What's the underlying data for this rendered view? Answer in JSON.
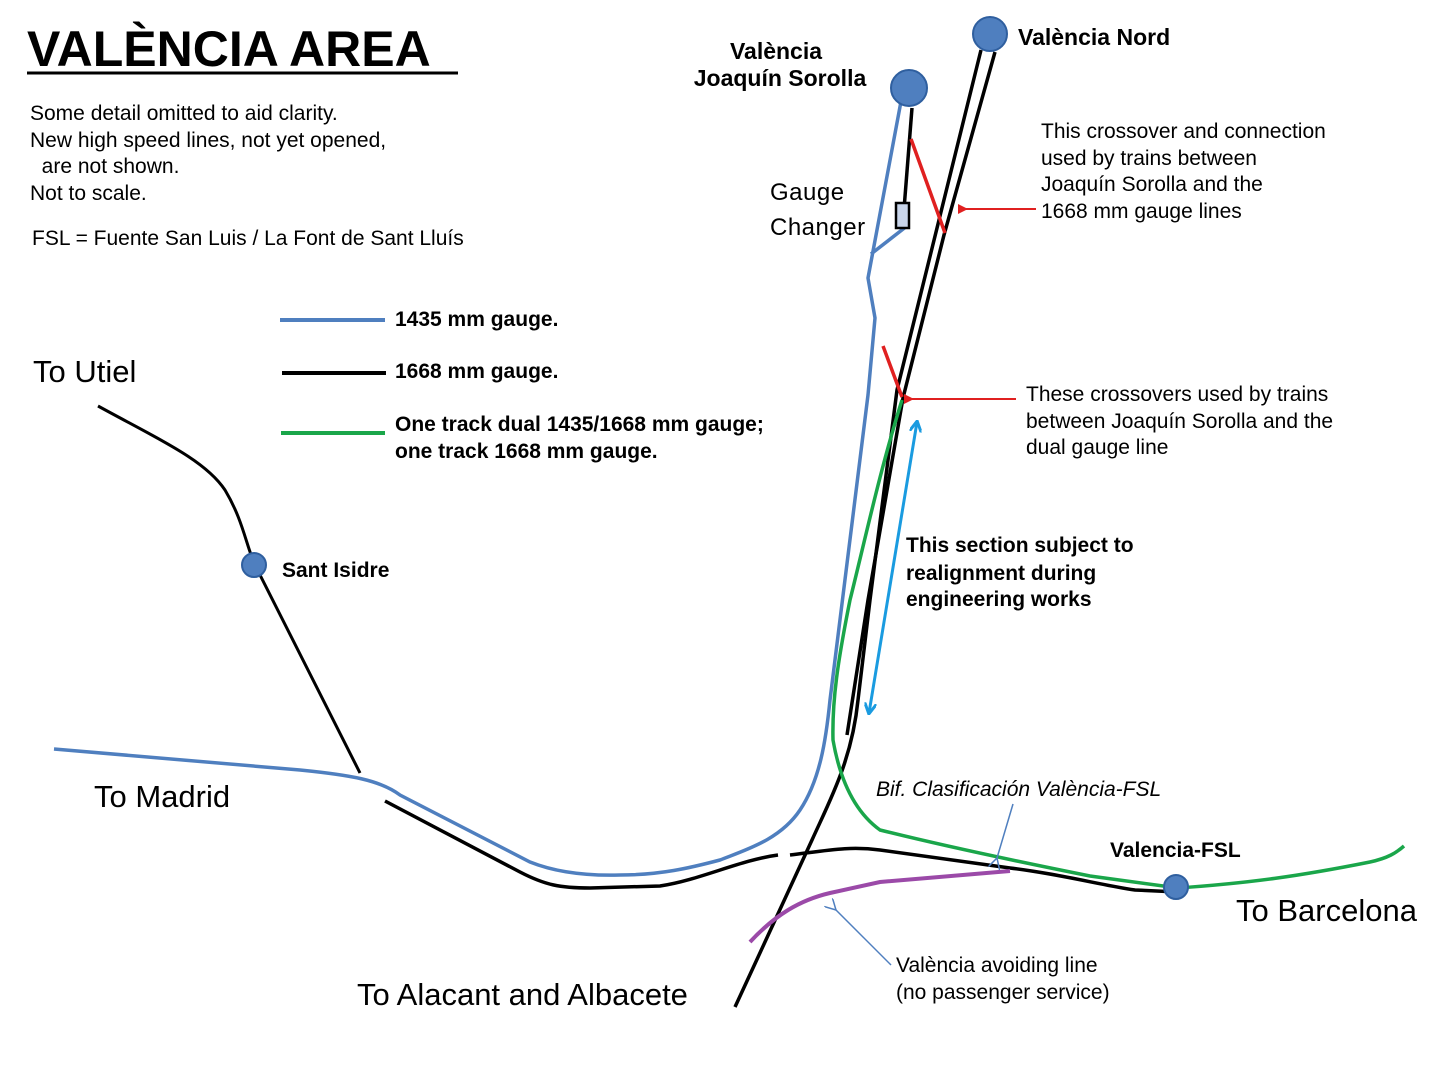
{
  "title": "VALÈNCIA AREA",
  "notes": [
    "Some detail omitted to aid clarity.",
    "New high speed lines, not yet opened,",
    "  are not shown.",
    "Not to scale."
  ],
  "abbreviation": "FSL = Fuente San Luis / La Font de Sant Lluís",
  "legend": [
    {
      "label": "1435 mm gauge.",
      "color": "#4f7fbf"
    },
    {
      "label": "1668 mm gauge.",
      "color": "#000000"
    },
    {
      "label_lines": [
        "One track dual 1435/1668 mm gauge;",
        "one track 1668 mm gauge."
      ],
      "color": "#1aa64a"
    }
  ],
  "colors": {
    "gauge_1435": "#4f7fbf",
    "gauge_1668": "#000000",
    "dual_gauge": "#1aa64a",
    "avoiding_line": "#9b4aa8",
    "crossover": "#e02020",
    "realignment_arrow": "#1a9be0",
    "pointer_arrow": "#4f7fbf",
    "station_fill": "#4f7fbf",
    "station_outline": "#2f5f9f"
  },
  "stations": {
    "sorolla": [
      "València",
      "Joaquín Sorolla"
    ],
    "nord": "València Nord",
    "sant_isidre": "Sant Isidre",
    "fsl": "Valencia-FSL"
  },
  "destinations": {
    "utiel": "To Utiel",
    "madrid": "To Madrid",
    "barcelona": "To Barcelona",
    "alacant": "To Alacant and Albacete"
  },
  "gauge_changer": [
    "Gauge",
    "Changer"
  ],
  "annotations": {
    "crossover_1668": [
      "This crossover and connection",
      "used by trains between",
      "Joaquín Sorolla and the",
      "1668 mm gauge lines"
    ],
    "crossover_dual": [
      "These crossovers used by trains",
      "between Joaquín Sorolla and the",
      "dual gauge line"
    ],
    "realignment": [
      "This section subject to",
      "realignment during",
      "engineering works"
    ],
    "bif": "Bif. Clasificación València-FSL",
    "avoiding": [
      "València avoiding line",
      "(no passenger service)"
    ]
  }
}
